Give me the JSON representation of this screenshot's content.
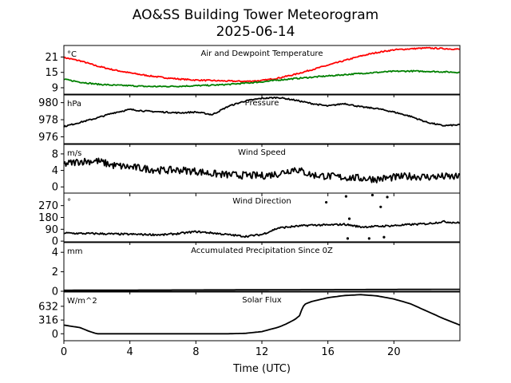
{
  "chart_data": {
    "type": "line",
    "title": "AO&SS Building Tower Meteorogram",
    "subtitle": "2025-06-14",
    "xlabel": "Time (UTC)",
    "xlim": [
      0,
      24
    ],
    "xticks": [
      0,
      4,
      8,
      12,
      16,
      20
    ],
    "xtick_labels": [
      "0",
      "4",
      "8",
      "12",
      "16",
      "20"
    ],
    "panels": [
      {
        "id": "temp",
        "title": "Air and Dewpoint Temperature",
        "unit": "°C",
        "ylim": [
          6.5,
          25.5
        ],
        "yticks": [
          9,
          15,
          21
        ],
        "ytick_labels": [
          "9",
          "15",
          "21"
        ],
        "series": [
          {
            "name": "",
            "color": "#ff0000",
            "x": [
              0,
              1,
              2,
              3,
              4,
              5,
              6,
              7,
              8,
              9,
              10,
              11,
              12,
              13,
              14,
              15,
              16,
              17,
              18,
              19,
              20,
              21,
              22,
              23,
              24
            ],
            "y": [
              20.8,
              19.5,
              17.5,
              16,
              14.8,
              13.8,
              13,
              12.4,
              12,
              11.8,
              11.6,
              11.5,
              11.8,
              12.8,
              14.2,
              16,
              17.8,
              19.6,
              21.4,
              22.8,
              23.8,
              24.2,
              24.5,
              24.3,
              24.0
            ]
          },
          {
            "name": "",
            "color": "#008000",
            "x": [
              0,
              1,
              2,
              3,
              4,
              5,
              6,
              7,
              8,
              9,
              10,
              11,
              12,
              13,
              14,
              15,
              16,
              17,
              18,
              19,
              20,
              21,
              22,
              23,
              24
            ],
            "y": [
              12.3,
              11.2,
              10.4,
              10.0,
              9.8,
              9.5,
              9.5,
              9.6,
              9.8,
              10.0,
              10.3,
              10.8,
              11.3,
              12.0,
              12.6,
              13.1,
              13.6,
              14.1,
              14.6,
              15.0,
              15.4,
              15.5,
              15.4,
              15.2,
              15.0
            ]
          }
        ]
      },
      {
        "id": "pressure",
        "title": "Pressure",
        "unit": "hPa",
        "ylim": [
          975.2,
          980.9
        ],
        "yticks": [
          976,
          978,
          980
        ],
        "ytick_labels": [
          "976",
          "978",
          "980"
        ],
        "series": [
          {
            "name": "",
            "color": "#000000",
            "x": [
              0,
              1,
              2,
              3,
              4,
              5,
              6,
              7,
              8,
              9,
              10,
              11,
              12,
              13,
              14,
              15,
              16,
              17,
              18,
              19,
              20,
              21,
              22,
              23,
              24
            ],
            "y": [
              977.2,
              977.7,
              978.2,
              978.8,
              979.2,
              979.0,
              978.9,
              978.8,
              978.9,
              978.6,
              979.6,
              980.2,
              980.5,
              980.6,
              980.3,
              979.9,
              979.6,
              979.9,
              979.5,
              979.3,
              978.9,
              978.4,
              977.7,
              977.3,
              977.4
            ]
          }
        ]
      },
      {
        "id": "wind_speed",
        "title": "Wind Speed",
        "unit": "m/s",
        "ylim": [
          -1.5,
          10.3
        ],
        "yticks": [
          0,
          4,
          8
        ],
        "ytick_labels": [
          "0",
          "4",
          "8"
        ],
        "series": [
          {
            "name": "",
            "color": "#000000",
            "x": [
              0,
              1,
              2,
              3,
              4,
              5,
              6,
              7,
              8,
              9,
              10,
              11,
              12,
              13,
              14,
              15,
              16,
              17,
              18,
              19,
              20,
              21,
              22,
              23,
              24
            ],
            "y": [
              5.5,
              6.2,
              6.3,
              5.2,
              4.8,
              4.4,
              4.0,
              4.1,
              3.8,
              3.2,
              2.9,
              2.8,
              2.7,
              3.2,
              4.4,
              2.9,
              2.6,
              2.3,
              2.1,
              1.9,
              2.3,
              2.6,
              2.4,
              2.5,
              2.4
            ]
          }
        ]
      },
      {
        "id": "wind_direction",
        "title": "Wind Direction",
        "unit": "°",
        "ylim": [
          -5,
          365
        ],
        "yticks": [
          0,
          90,
          180,
          270
        ],
        "ytick_labels": [
          "0",
          "90",
          "180",
          "270"
        ],
        "series": [
          {
            "name": "",
            "color": "#000000",
            "x": [
              0,
              1,
              2,
              3,
              4,
              5,
              6,
              7,
              8,
              9,
              10,
              11,
              12,
              13,
              14,
              15,
              16,
              17,
              18,
              19,
              20,
              21,
              22,
              23,
              24
            ],
            "y": [
              62,
              58,
              57,
              54,
              52,
              50,
              48,
              58,
              72,
              62,
              48,
              36,
              50,
              100,
              112,
              122,
              122,
              128,
              108,
              112,
              118,
              126,
              132,
              148,
              138
            ]
          }
        ],
        "scatter_points": [
          {
            "x": 15.9,
            "y": 295
          },
          {
            "x": 17.1,
            "y": 340
          },
          {
            "x": 18.7,
            "y": 350
          },
          {
            "x": 19.2,
            "y": 260
          },
          {
            "x": 19.6,
            "y": 335
          },
          {
            "x": 17.3,
            "y": 170
          },
          {
            "x": 18.5,
            "y": 20
          },
          {
            "x": 17.2,
            "y": 20
          },
          {
            "x": 19.4,
            "y": 30
          }
        ]
      },
      {
        "id": "precip",
        "title": "Accumulated Precipitation Since 0Z",
        "unit": "mm",
        "ylim": [
          0,
          5
        ],
        "yticks": [
          0,
          2,
          4
        ],
        "ytick_labels": [
          "0",
          "2",
          "4"
        ],
        "series": [
          {
            "name": "",
            "color": "#000000",
            "x": [
              0,
              12,
              24
            ],
            "y": [
              0.1,
              0.15,
              0.2
            ]
          }
        ]
      },
      {
        "id": "solar",
        "title": "Solar Flux",
        "unit": "W/m^2",
        "ylim": [
          -160,
          960
        ],
        "yticks": [
          0,
          316,
          632
        ],
        "ytick_labels": [
          "0",
          "316",
          "632"
        ],
        "series": [
          {
            "name": "",
            "color": "#000000",
            "x": [
              0,
              1,
              1.5,
              2,
              4,
              6,
              8,
              10,
              11,
              12,
              13,
              13.5,
              14,
              14.3,
              14.45,
              14.6,
              15,
              16,
              17,
              18,
              19,
              20,
              21,
              22,
              23,
              24
            ],
            "y": [
              200,
              140,
              60,
              0,
              0,
              0,
              0,
              0,
              10,
              50,
              150,
              230,
              330,
              420,
              600,
              680,
              740,
              830,
              880,
              900,
              870,
              800,
              690,
              520,
              350,
              200
            ]
          }
        ]
      }
    ]
  }
}
